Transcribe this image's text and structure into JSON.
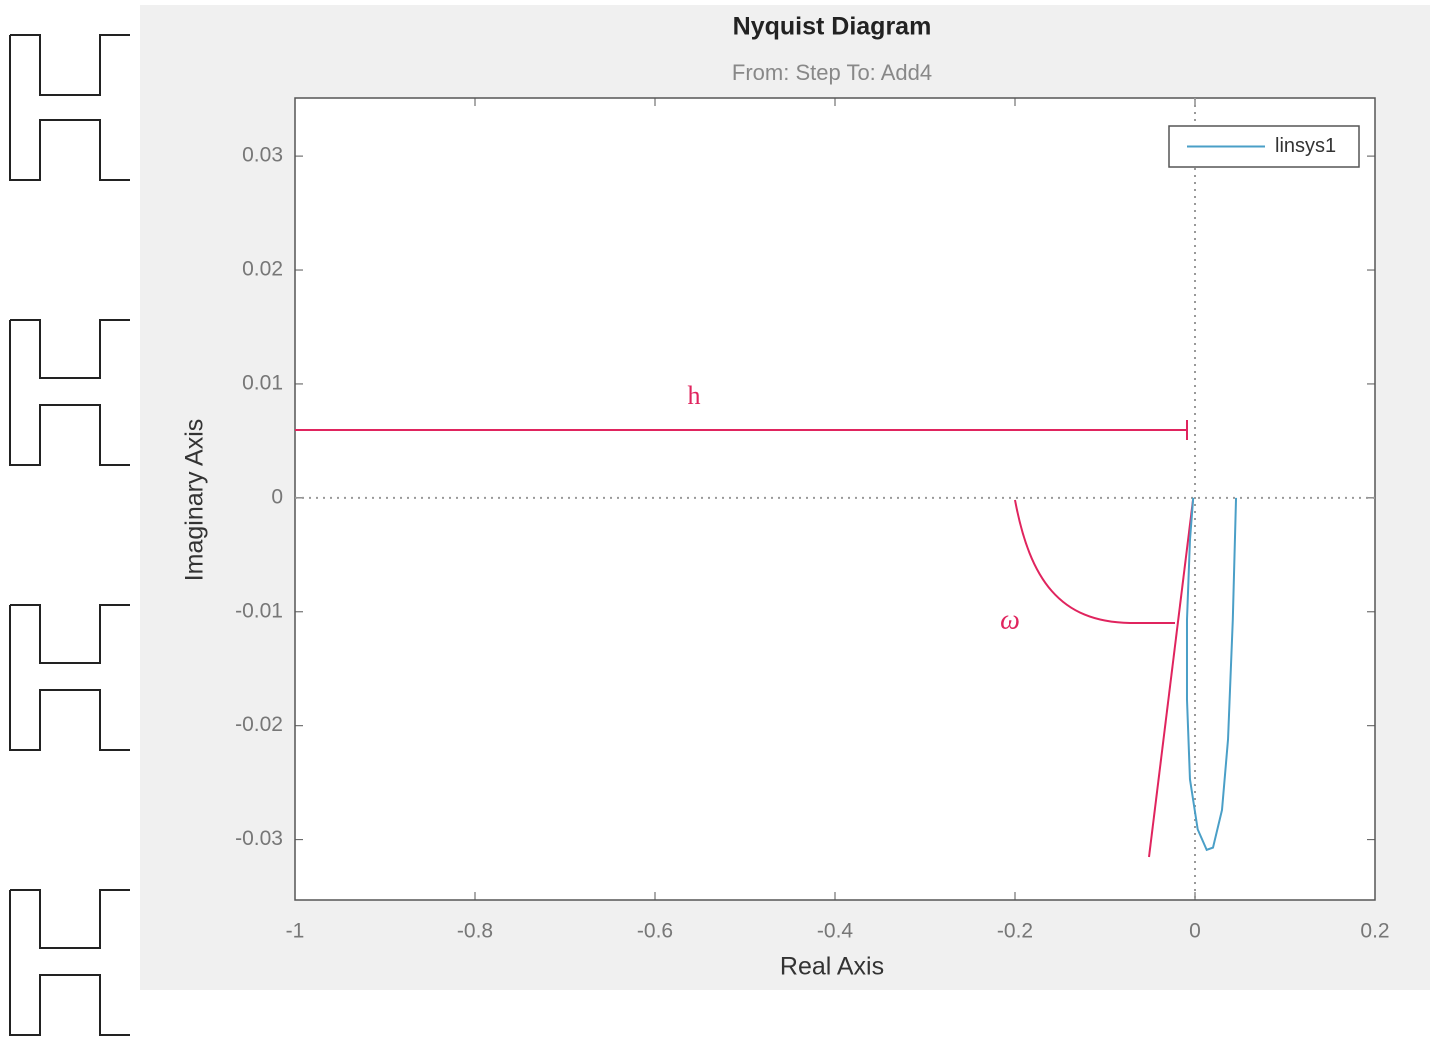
{
  "chart_data": {
    "type": "line",
    "title": "Nyquist Diagram",
    "subtitle": "From: Step  To: Add4",
    "x_label": "Real Axis",
    "y_label": "Imaginary Axis",
    "xlim": [
      -1,
      0.2
    ],
    "xticks": [
      -1,
      -0.8,
      -0.6,
      -0.4,
      -0.2,
      0,
      0.2
    ],
    "ylim": [
      -0.0353,
      0.0351
    ],
    "yticks": [
      -0.03,
      -0.02,
      -0.01,
      0,
      0.01,
      0.02,
      0.03
    ],
    "legend": "upper right",
    "series": [
      {
        "name": "linsys1",
        "color": "#4a9fc7",
        "x": [
          0.0456,
          0.042,
          0.0367,
          0.03,
          0.02,
          0.013,
          0.003,
          -0.0056,
          -0.0089,
          -0.0089,
          -0.0056,
          -0.002
        ],
        "values": [
          0,
          -0.0107,
          -0.0212,
          -0.0274,
          -0.0307,
          -0.0309,
          -0.0291,
          -0.0247,
          -0.0177,
          -0.0107,
          -0.0037,
          0
        ]
      }
    ],
    "annotations": [
      {
        "text": "h"
      },
      {
        "text": "ω"
      }
    ]
  }
}
